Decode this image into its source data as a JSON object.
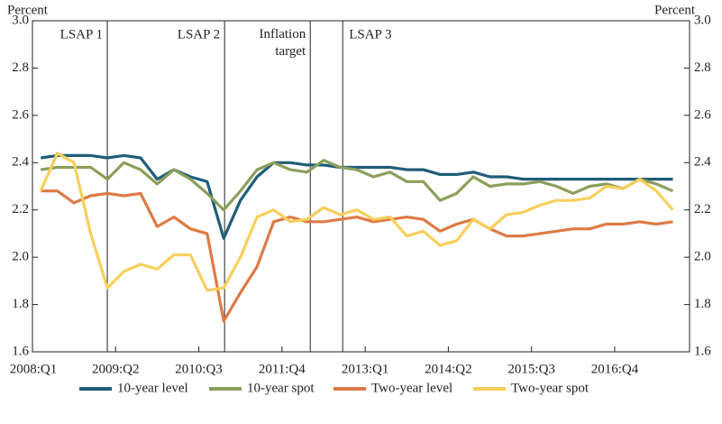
{
  "chart_data": {
    "type": "line",
    "ylabel": "Percent",
    "y2label": "Percent",
    "x": [
      0.5,
      1.5,
      2.5,
      3.5,
      4.5,
      5.5,
      6.5,
      7.5,
      8.5,
      9.5,
      10.5,
      11.5,
      12.5,
      13.5,
      14.5,
      15.5,
      16.5,
      17.5,
      18.5,
      19.5,
      20.5,
      21.5,
      22.5,
      23.5,
      24.5,
      25.5,
      26.5,
      27.5,
      28.5,
      29.5,
      30.5,
      31.5,
      32.5,
      33.5,
      34.5,
      35.5,
      36.5,
      37.5,
      38.5
    ],
    "xlim": [
      0,
      39.5
    ],
    "xticks": [
      {
        "value": 0,
        "label": "2008:Q1"
      },
      {
        "value": 5,
        "label": "2009:Q2"
      },
      {
        "value": 10,
        "label": "2010:Q3"
      },
      {
        "value": 15,
        "label": "2011:Q4"
      },
      {
        "value": 20,
        "label": "2013:Q1"
      },
      {
        "value": 25,
        "label": "2014:Q2"
      },
      {
        "value": 30,
        "label": "2015:Q3"
      },
      {
        "value": 35,
        "label": "2016:Q4"
      }
    ],
    "ylim": [
      1.6,
      3.0
    ],
    "yticks": [
      1.6,
      1.8,
      {
        "value": 2.0,
        "label": "2.0"
      },
      2.2,
      2.4,
      2.6,
      2.8,
      {
        "value": 3.0,
        "label": "3.0"
      }
    ],
    "y2lim": [
      1.6,
      3.0
    ],
    "y2ticks": [
      1.6,
      1.8,
      {
        "value": 2.0,
        "label": "2.0"
      },
      2.2,
      2.4,
      2.6,
      2.8,
      {
        "value": 3.0,
        "label": "3.0"
      }
    ],
    "events": [
      {
        "label": "LSAP 1",
        "x": 4.5
      },
      {
        "label": "LSAP 2",
        "x": 11.55
      },
      {
        "label": "Inflation target",
        "x": 16.7
      },
      {
        "label": "LSAP 3",
        "x": 18.65
      }
    ],
    "legend": "bottom",
    "series": [
      {
        "name": "10-year level",
        "color": "#1f5d78",
        "values": [
          2.42,
          2.43,
          2.43,
          2.43,
          2.42,
          2.43,
          2.42,
          2.33,
          2.37,
          2.34,
          2.32,
          2.08,
          2.24,
          2.34,
          2.4,
          2.4,
          2.39,
          2.39,
          2.38,
          2.38,
          2.38,
          2.38,
          2.37,
          2.37,
          2.35,
          2.35,
          2.36,
          2.34,
          2.34,
          2.33,
          2.33,
          2.33,
          2.33,
          2.33,
          2.33,
          2.33,
          2.33,
          2.33,
          2.33
        ]
      },
      {
        "name": "10-year spot",
        "color": "#8c9f5b",
        "values": [
          2.37,
          2.38,
          2.38,
          2.38,
          2.33,
          2.4,
          2.37,
          2.31,
          2.37,
          2.33,
          2.27,
          2.2,
          2.28,
          2.37,
          2.4,
          2.37,
          2.36,
          2.41,
          2.38,
          2.37,
          2.34,
          2.36,
          2.32,
          2.32,
          2.24,
          2.27,
          2.34,
          2.3,
          2.31,
          2.31,
          2.32,
          2.3,
          2.27,
          2.3,
          2.31,
          2.29,
          2.33,
          2.31,
          2.28
        ]
      },
      {
        "name": "Two-year level",
        "color": "#de7a45",
        "values": [
          2.28,
          2.28,
          2.23,
          2.26,
          2.27,
          2.26,
          2.27,
          2.13,
          2.17,
          2.12,
          2.1,
          1.73,
          1.85,
          1.96,
          2.15,
          2.17,
          2.15,
          2.15,
          2.16,
          2.17,
          2.15,
          2.16,
          2.17,
          2.16,
          2.11,
          2.14,
          2.16,
          2.12,
          2.09,
          2.09,
          2.1,
          2.11,
          2.12,
          2.12,
          2.14,
          2.14,
          2.15,
          2.14,
          2.15
        ]
      },
      {
        "name": "Two-year spot",
        "color": "#f6cf5c",
        "values": [
          2.28,
          2.44,
          2.4,
          2.1,
          1.87,
          1.94,
          1.97,
          1.95,
          2.01,
          2.01,
          1.86,
          1.87,
          2.0,
          2.17,
          2.2,
          2.15,
          2.16,
          2.21,
          2.18,
          2.2,
          2.16,
          2.17,
          2.09,
          2.11,
          2.05,
          2.07,
          2.16,
          2.12,
          2.18,
          2.19,
          2.22,
          2.24,
          2.24,
          2.25,
          2.3,
          2.29,
          2.33,
          2.28,
          2.2
        ]
      }
    ]
  }
}
